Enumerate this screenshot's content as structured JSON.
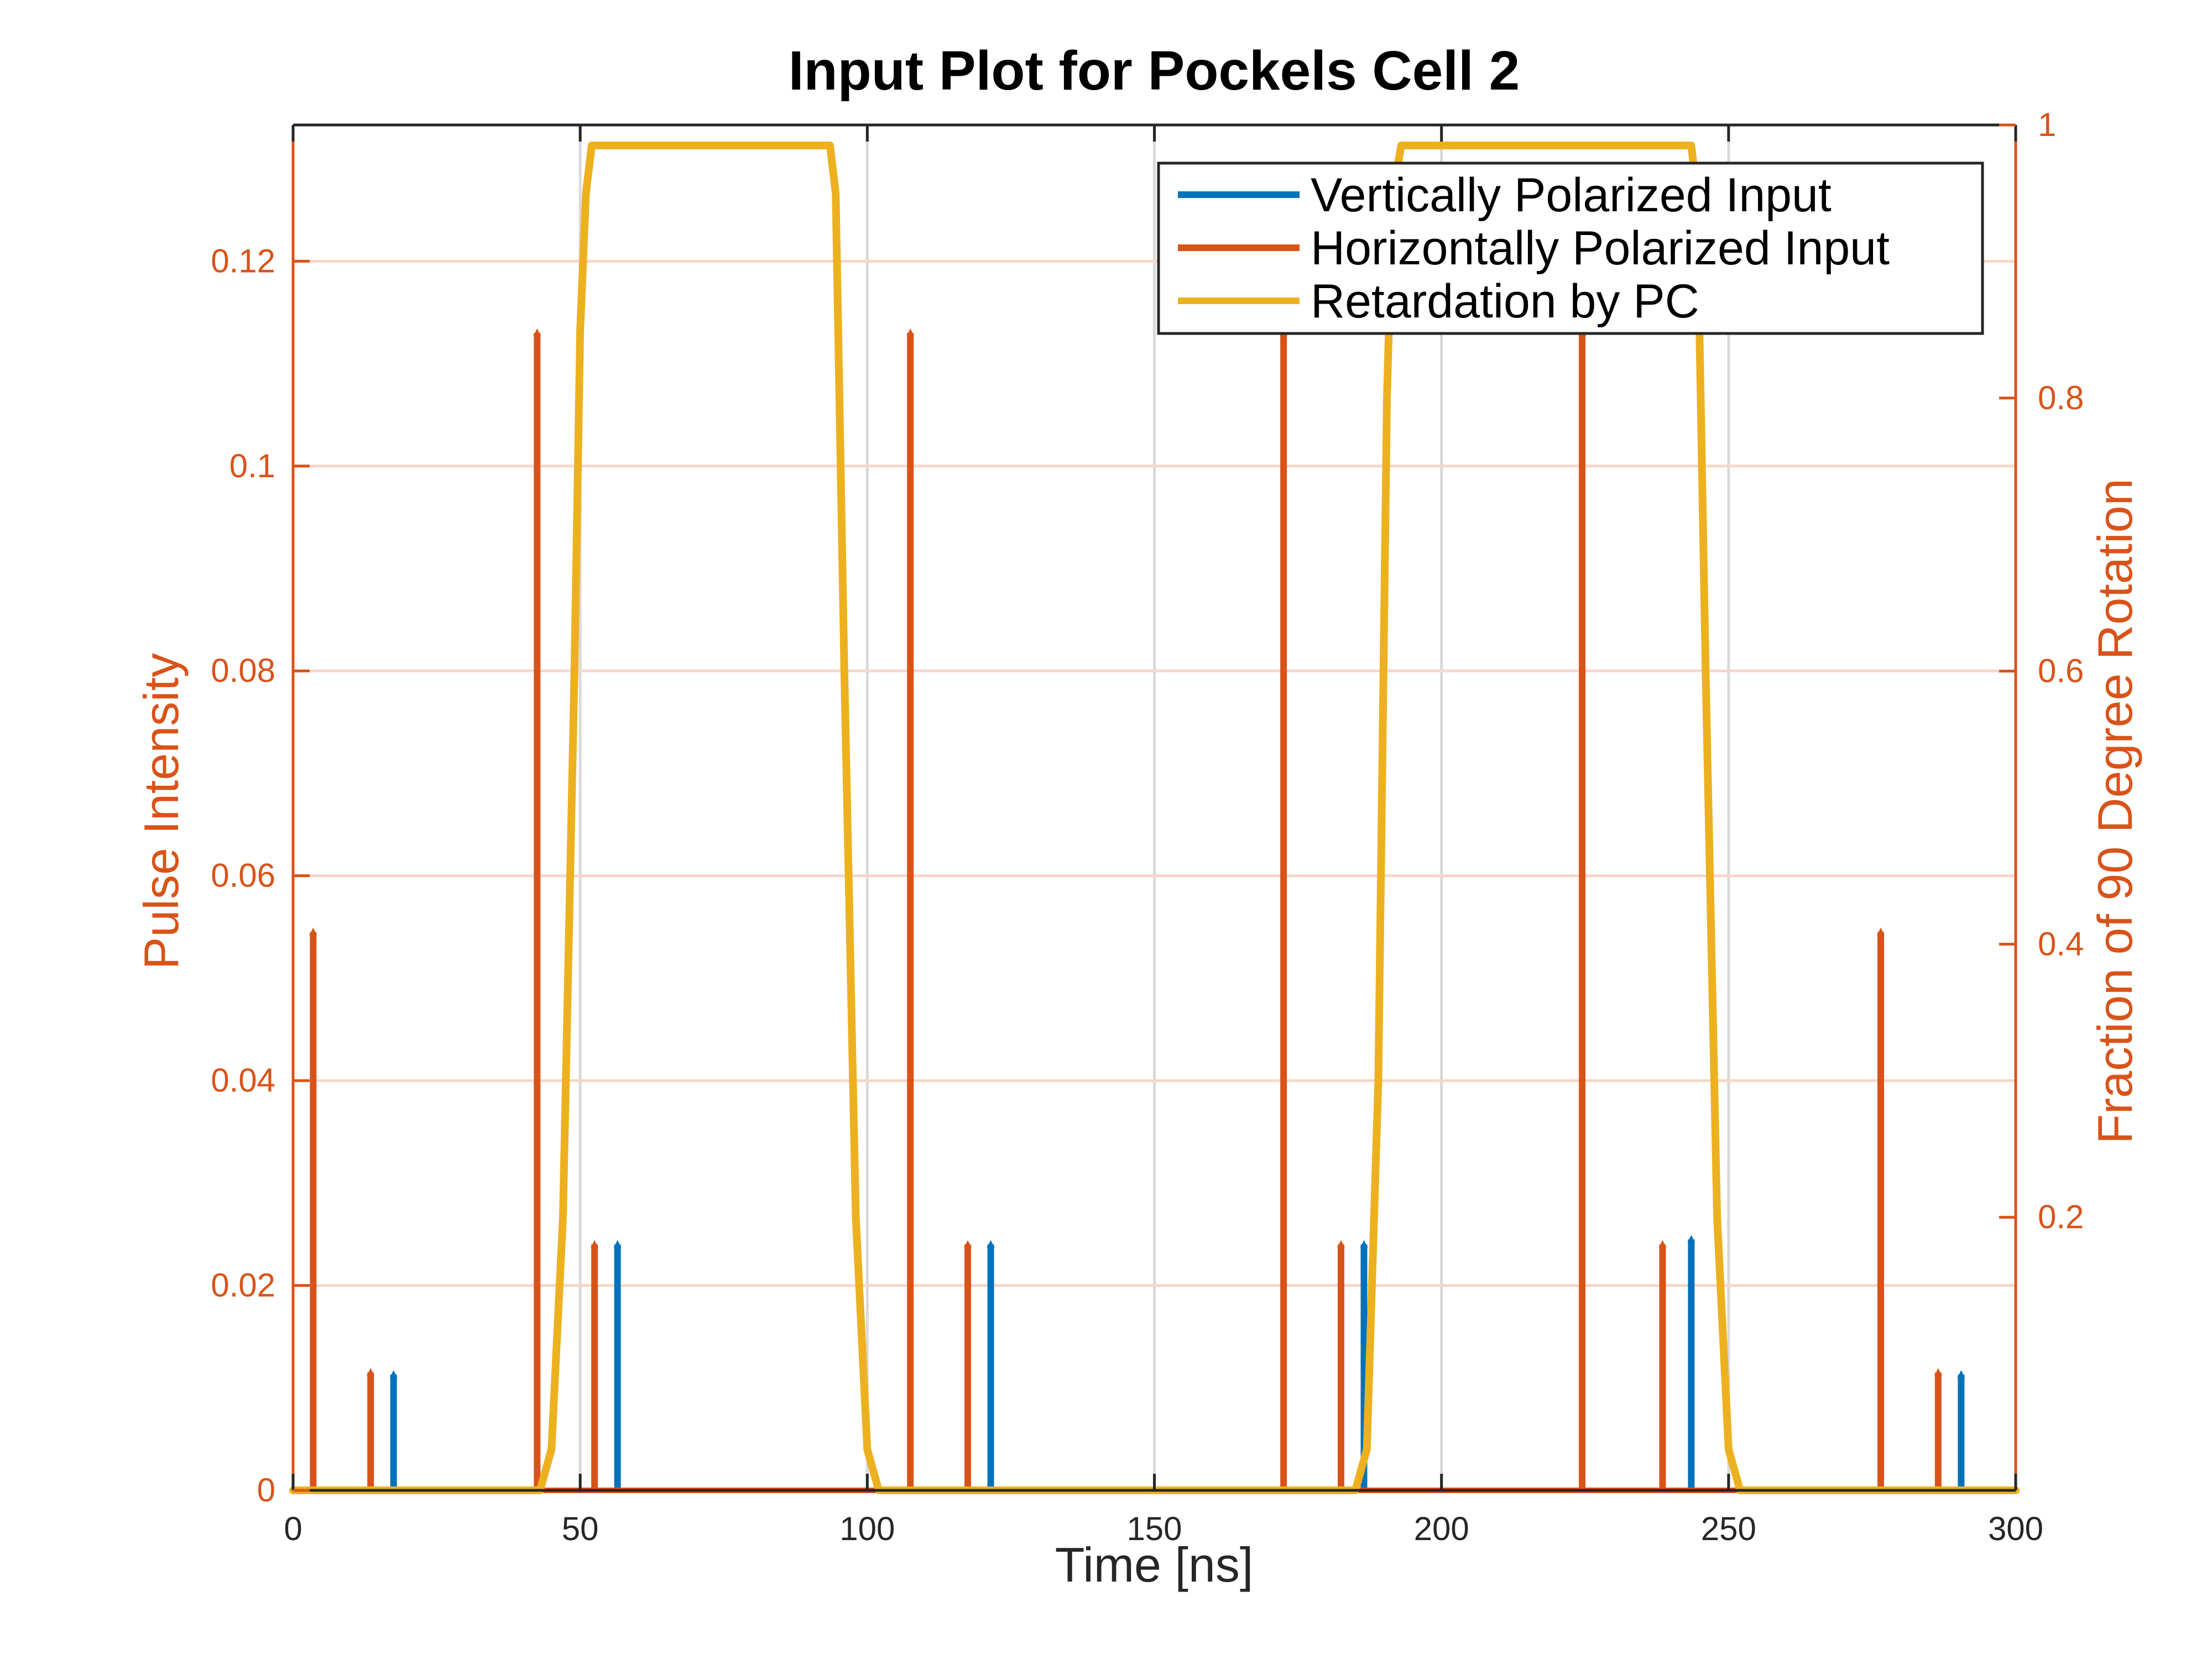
{
  "chart_data": {
    "type": "line",
    "title": "Input Plot for Pockels Cell 2",
    "xlabel": "Time [ns]",
    "ylabel_left": "Pulse Intensity",
    "ylabel_right": "Fraction of 90 Degree Rotation",
    "xlim": [
      0,
      300
    ],
    "ylim_left": [
      0,
      0.1333
    ],
    "ylim_right": [
      0,
      1
    ],
    "x_ticks": [
      0,
      50,
      100,
      150,
      200,
      250,
      300
    ],
    "x_tick_labels": [
      "0",
      "50",
      "100",
      "150",
      "200",
      "250",
      "300"
    ],
    "y_left_ticks": [
      0,
      0.02,
      0.04,
      0.06,
      0.08,
      0.1,
      0.12
    ],
    "y_left_tick_labels": [
      "0",
      "0.02",
      "0.04",
      "0.06",
      "0.08",
      "0.1",
      "0.12"
    ],
    "y_right_ticks": [
      0.2,
      0.4,
      0.6,
      0.8,
      1
    ],
    "y_right_tick_labels": [
      "0.2",
      "0.4",
      "0.6",
      "0.8",
      "1"
    ],
    "grid": true,
    "legend_position": "top-right",
    "series": [
      {
        "name": "Vertically Polarized Input",
        "axis": "left",
        "style": "stem",
        "color": "#0072BD",
        "x": [
          17.5,
          56.5,
          121.5,
          186.5,
          243.5,
          290.5
        ],
        "values": [
          0.0113,
          0.024,
          0.024,
          0.024,
          0.0245,
          0.0113
        ]
      },
      {
        "name": "Horizontally Polarized Input",
        "axis": "left",
        "style": "stem",
        "color": "#D95319",
        "x": [
          3.5,
          13.5,
          42.5,
          52.5,
          107.5,
          117.5,
          172.5,
          182.5,
          224.5,
          238.5,
          276.5,
          286.5
        ],
        "values": [
          0.0545,
          0.0115,
          0.113,
          0.024,
          0.113,
          0.024,
          0.113,
          0.024,
          0.113,
          0.024,
          0.0545,
          0.0115
        ]
      },
      {
        "name": "Retardation by PC",
        "axis": "right",
        "style": "line",
        "color": "#EDB120",
        "x": [
          0,
          43,
          45,
          47,
          49,
          50,
          51,
          52,
          93.5,
          94.5,
          96,
          98,
          100,
          102,
          185,
          187,
          189,
          190.5,
          191.5,
          193,
          243.5,
          244.5,
          246,
          248,
          250,
          252,
          300
        ],
        "values": [
          0,
          0,
          0.03,
          0.2,
          0.6,
          0.85,
          0.95,
          0.985,
          0.985,
          0.95,
          0.6,
          0.2,
          0.03,
          0,
          0,
          0.03,
          0.3,
          0.8,
          0.95,
          0.985,
          0.985,
          0.95,
          0.6,
          0.2,
          0.03,
          0,
          0
        ]
      }
    ]
  }
}
